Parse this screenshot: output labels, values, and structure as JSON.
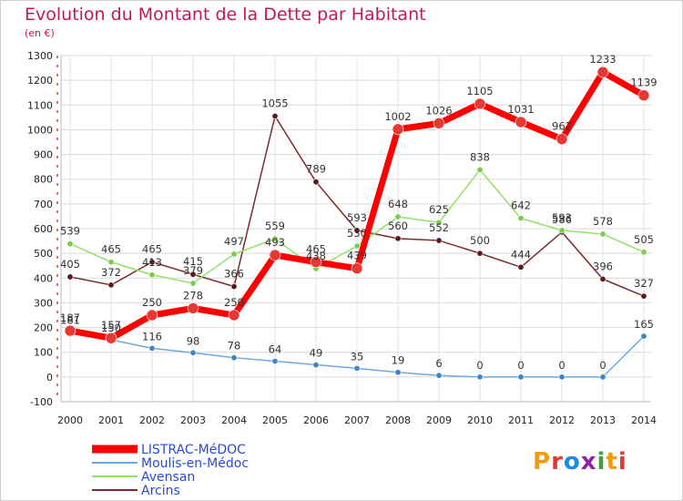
{
  "title": "Evolution du Montant de la Dette par Habitant",
  "unit": "(en €)",
  "logo": {
    "text": "Proxiti",
    "colors": [
      "#f39c12",
      "#e53935",
      "#1e88e5",
      "#8e24aa",
      "#43a047"
    ]
  },
  "chart_data": {
    "type": "line",
    "x": [
      "2000",
      "2001",
      "2002",
      "2003",
      "2004",
      "2005",
      "2006",
      "2007",
      "2008",
      "2009",
      "2010",
      "2011",
      "2012",
      "2013",
      "2014"
    ],
    "ylim": [
      -100,
      1300
    ],
    "yticks": [
      -100,
      0,
      100,
      200,
      300,
      400,
      500,
      600,
      700,
      800,
      900,
      1000,
      1100,
      1200,
      1300
    ],
    "grid": true,
    "legend_position": "bottom-left",
    "series": [
      {
        "name": "LISTRAC-MéDOC",
        "color": "#ff0000",
        "marker": "#e53935",
        "width": 7,
        "values": [
          187,
          157,
          250,
          278,
          250,
          493,
          465,
          439,
          1002,
          1026,
          1105,
          1031,
          962,
          1233,
          1139
        ]
      },
      {
        "name": "Moulis-en-Médoc",
        "color": "#6fa8dc",
        "marker": "#3d85c6",
        "width": 1.5,
        "values": [
          181,
          150,
          116,
          98,
          78,
          64,
          49,
          35,
          19,
          6,
          0,
          0,
          0,
          0,
          165
        ]
      },
      {
        "name": "Avensan",
        "color": "#93e06b",
        "marker": "#7ccd4f",
        "width": 1.5,
        "values": [
          539,
          465,
          413,
          379,
          497,
          559,
          438,
          530,
          648,
          625,
          838,
          642,
          593,
          578,
          505
        ]
      },
      {
        "name": "Arcins",
        "color": "#7b2b2b",
        "marker": "#5d1a1a",
        "width": 1.5,
        "values": [
          405,
          372,
          465,
          415,
          366,
          1055,
          789,
          593,
          560,
          552,
          500,
          444,
          586,
          396,
          327
        ]
      }
    ]
  }
}
